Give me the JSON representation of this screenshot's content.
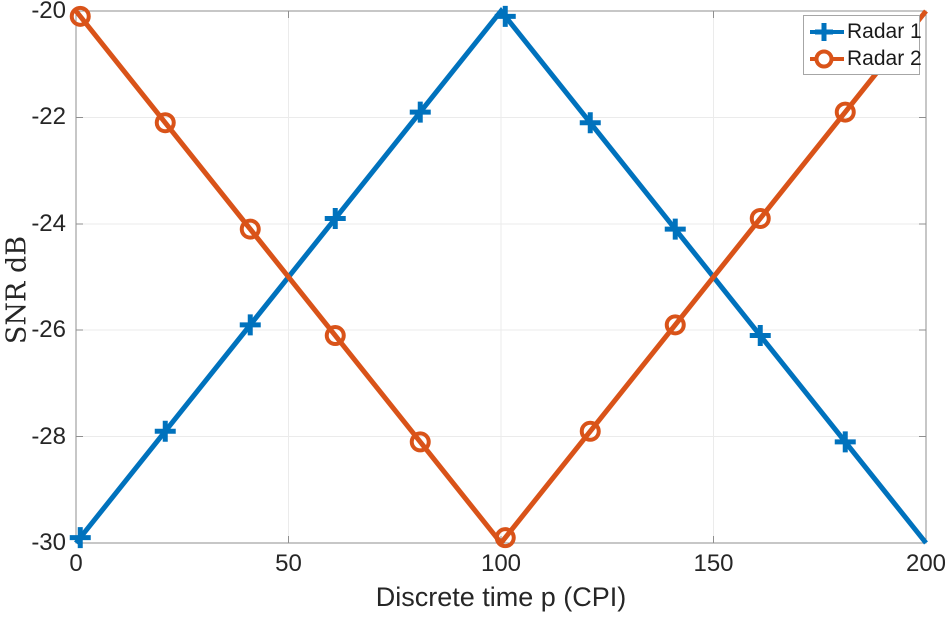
{
  "figure": {
    "background": "#ffffff",
    "axis_box_color": "#8f8f8f",
    "grid_color": "#ebebeb",
    "text_color": "#262626",
    "legend_border_color": "#a6a6a6"
  },
  "chart_data": {
    "type": "line",
    "title": "",
    "xlabel": "Discrete time p (CPI)",
    "ylabel": "SNR dB",
    "xlim": [
      0,
      200
    ],
    "ylim": [
      -30,
      -20
    ],
    "x_ticks": [
      0,
      50,
      100,
      150,
      200
    ],
    "y_ticks": [
      -30,
      -28,
      -26,
      -24,
      -22,
      -20
    ],
    "grid": true,
    "legend_position": "top-right",
    "series": [
      {
        "name": "Radar 1",
        "color": "#0072BD",
        "marker": "plus",
        "line_width": 5,
        "vertices": [
          [
            0,
            -30
          ],
          [
            100,
            -20
          ],
          [
            200,
            -30
          ]
        ],
        "marker_x": [
          1,
          21,
          41,
          61,
          81,
          101,
          121,
          141,
          161,
          181
        ],
        "marker_values": [
          -29.9,
          -27.9,
          -25.9,
          -23.9,
          -21.9,
          -20.1,
          -22.1,
          -24.1,
          -26.1,
          -28.1
        ]
      },
      {
        "name": "Radar 2",
        "color": "#D95319",
        "marker": "circle",
        "line_width": 5,
        "vertices": [
          [
            0,
            -20
          ],
          [
            100,
            -30
          ],
          [
            200,
            -20
          ]
        ],
        "marker_x": [
          1,
          21,
          41,
          61,
          81,
          101,
          121,
          141,
          161,
          181
        ],
        "marker_values": [
          -20.1,
          -22.1,
          -24.1,
          -26.1,
          -28.1,
          -29.9,
          -27.9,
          -25.9,
          -23.9,
          -21.9
        ]
      }
    ]
  }
}
